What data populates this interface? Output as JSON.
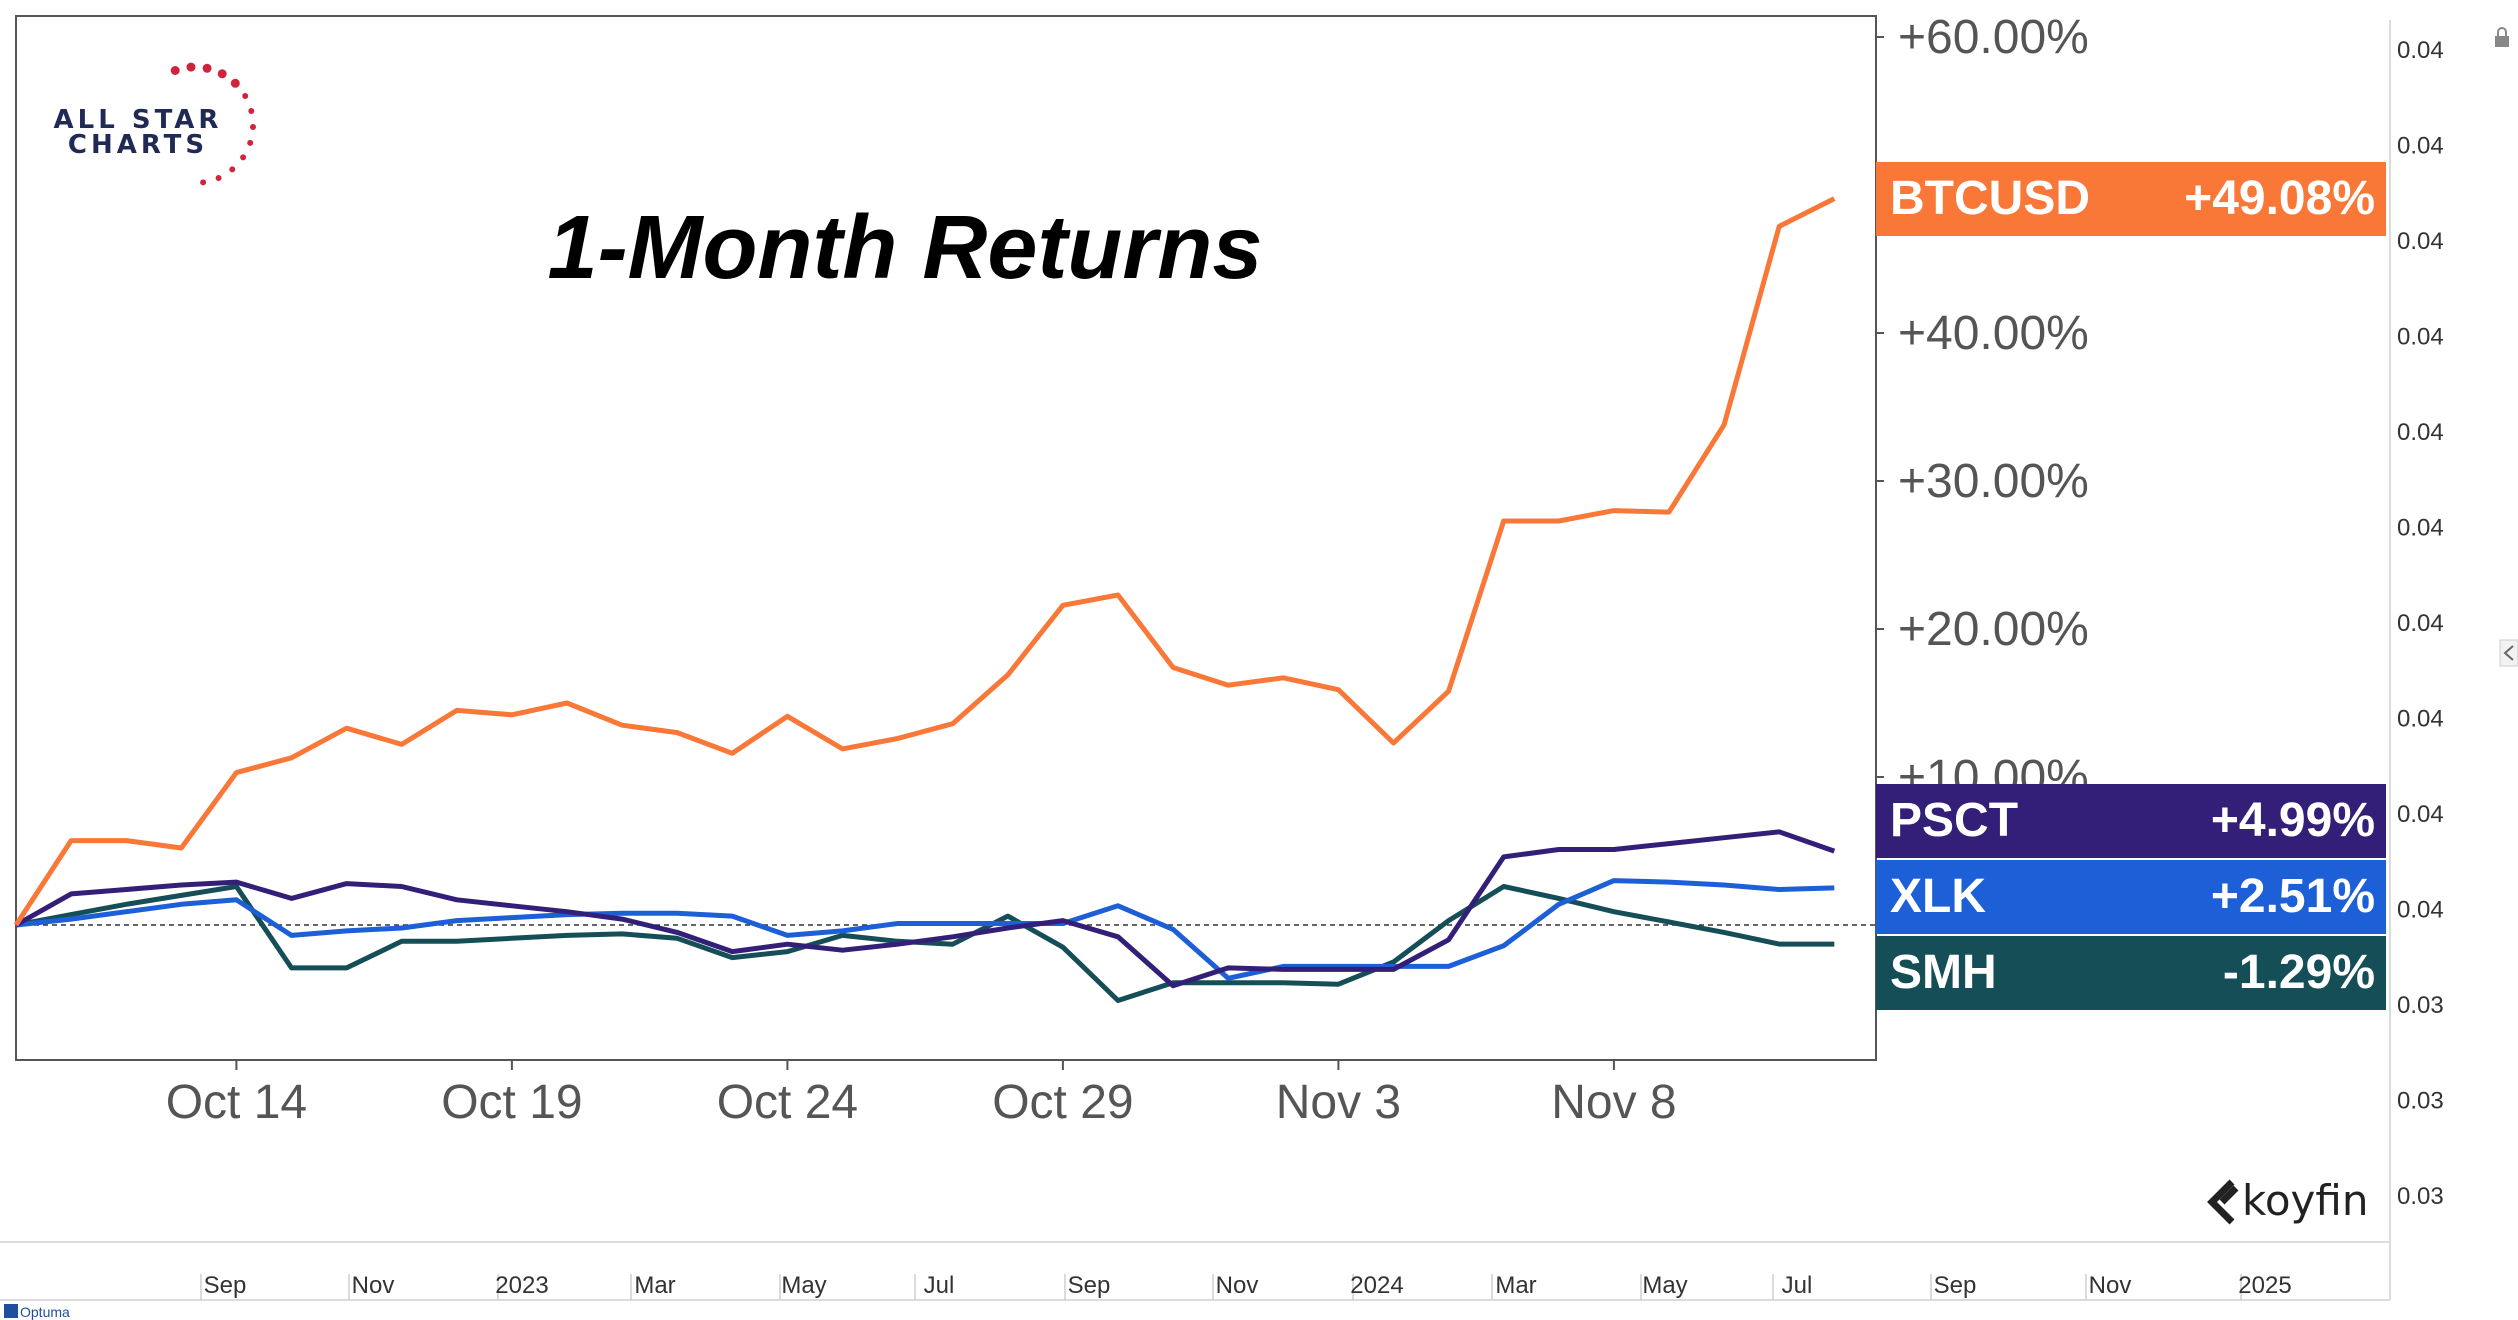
{
  "chart_data": {
    "type": "line",
    "title": "1-Month Returns",
    "x": [
      "Oct 10",
      "Oct 11",
      "Oct 12",
      "Oct 13",
      "Oct 14",
      "Oct 15",
      "Oct 16",
      "Oct 17",
      "Oct 18",
      "Oct 19",
      "Oct 20",
      "Oct 21",
      "Oct 22",
      "Oct 23",
      "Oct 24",
      "Oct 25",
      "Oct 26",
      "Oct 27",
      "Oct 28",
      "Oct 29",
      "Oct 30",
      "Oct 31",
      "Nov 1",
      "Nov 2",
      "Nov 3",
      "Nov 4",
      "Nov 5",
      "Nov 6",
      "Nov 7",
      "Nov 8",
      "Nov 9",
      "Nov 10",
      "Nov 11",
      "Nov 12"
    ],
    "x_tick_labels": [
      "Oct 14",
      "Oct 19",
      "Oct 24",
      "Oct 29",
      "Nov 3",
      "Nov 8"
    ],
    "y_tick_labels": [
      "+60.00%",
      "+40.00%",
      "+30.00%",
      "+20.00%",
      "+10.00%"
    ],
    "ylim": [
      -9.2,
      61.5
    ],
    "baseline": 0,
    "series": [
      {
        "name": "BTCUSD",
        "color": "#f97737",
        "last_label": "+49.08%",
        "values": [
          0,
          5.7,
          5.7,
          5.2,
          10.3,
          11.3,
          13.3,
          12.2,
          14.5,
          14.2,
          15.0,
          13.5,
          13.0,
          11.6,
          14.1,
          11.9,
          12.6,
          13.6,
          16.9,
          21.6,
          22.3,
          17.4,
          16.2,
          16.7,
          15.9,
          12.3,
          15.8,
          27.3,
          27.3,
          28.0,
          27.9,
          33.8,
          47.2,
          49.08
        ]
      },
      {
        "name": "PSCT",
        "color": "#341f78",
        "last_label": "+4.99%",
        "values": [
          0,
          2.1,
          2.4,
          2.7,
          2.9,
          1.8,
          2.8,
          2.6,
          1.7,
          1.3,
          0.9,
          0.4,
          -0.5,
          -1.8,
          -1.3,
          -1.7,
          -1.3,
          -0.8,
          -0.2,
          0.3,
          -0.8,
          -4.1,
          -2.9,
          -3.0,
          -3.0,
          -3.0,
          -1.0,
          4.6,
          5.1,
          5.1,
          5.5,
          5.9,
          6.3,
          4.99
        ]
      },
      {
        "name": "XLK",
        "color": "#1d5fd6",
        "last_label": "+2.51%",
        "values": [
          0,
          0.4,
          0.9,
          1.4,
          1.7,
          -0.7,
          -0.4,
          -0.2,
          0.3,
          0.5,
          0.7,
          0.8,
          0.8,
          0.6,
          -0.7,
          -0.4,
          0.1,
          0.1,
          0.1,
          0.1,
          1.3,
          -0.3,
          -3.6,
          -2.8,
          -2.8,
          -2.8,
          -2.8,
          -1.4,
          1.4,
          3.0,
          2.9,
          2.7,
          2.4,
          2.51
        ]
      },
      {
        "name": "SMH",
        "color": "#154e57",
        "last_label": "-1.29%",
        "values": [
          0,
          0.7,
          1.4,
          2.0,
          2.6,
          -2.9,
          -2.9,
          -1.1,
          -1.1,
          -0.9,
          -0.7,
          -0.6,
          -0.9,
          -2.2,
          -1.8,
          -0.7,
          -1.1,
          -1.3,
          0.6,
          -1.5,
          -5.1,
          -3.9,
          -3.9,
          -3.9,
          -4.0,
          -2.5,
          0.3,
          2.6,
          1.8,
          0.9,
          0.2,
          -0.5,
          -1.29,
          -1.29
        ]
      }
    ],
    "legend_placement": "right",
    "grid": false
  },
  "logo": {
    "line1": "ALL STAR",
    "line2": "CHARTS"
  },
  "watermark": {
    "brand": "koyfin",
    "optuma": "Optuma"
  },
  "background_chart": {
    "right_ticks": [
      "0.04",
      "0.04",
      "0.04",
      "0.04",
      "0.04",
      "0.04",
      "0.04",
      "0.04",
      "0.04",
      "0.04",
      "0.03",
      "0.03",
      "0.03"
    ],
    "bottom_labels": [
      "Sep",
      "Nov",
      "2023",
      "Mar",
      "May",
      "Jul",
      "Sep",
      "Nov",
      "2024",
      "Mar",
      "May",
      "Jul",
      "Sep",
      "Nov",
      "2025"
    ]
  }
}
